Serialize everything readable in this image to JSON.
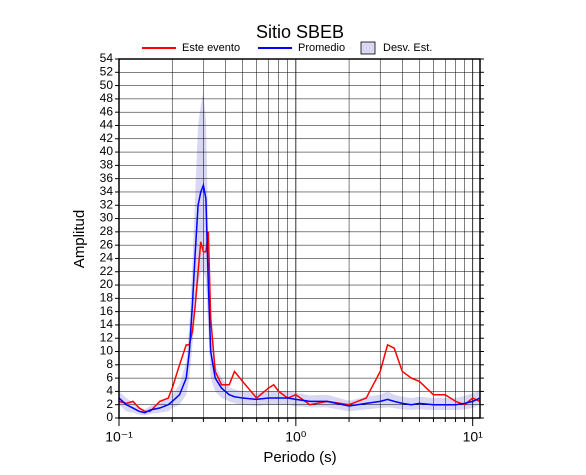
{
  "chart_data": {
    "type": "line",
    "title": "Sitio SBEB",
    "x_label": "Periodo (s)",
    "y_label": "Amplitud",
    "log_x": true,
    "grid": true,
    "xlim": [
      0.1,
      11
    ],
    "ylim": [
      0,
      54
    ],
    "xticks": [
      {
        "value": 0.1,
        "label": "10⁻¹"
      },
      {
        "value": 1,
        "label": "10⁰"
      },
      {
        "value": 10,
        "label": "10¹"
      }
    ],
    "xminorticks": [
      0.2,
      0.3,
      0.4,
      0.5,
      0.6,
      0.7,
      0.8,
      0.9,
      2,
      3,
      4,
      5,
      6,
      7,
      8,
      9
    ],
    "yticks": [
      0,
      2,
      4,
      6,
      8,
      10,
      12,
      14,
      16,
      18,
      20,
      22,
      24,
      26,
      28,
      30,
      32,
      34,
      36,
      38,
      40,
      42,
      44,
      46,
      48,
      50,
      52,
      54
    ],
    "x": [
      0.1,
      0.11,
      0.12,
      0.13,
      0.14,
      0.15,
      0.17,
      0.19,
      0.2,
      0.22,
      0.24,
      0.25,
      0.26,
      0.27,
      0.28,
      0.29,
      0.3,
      0.31,
      0.32,
      0.33,
      0.35,
      0.38,
      0.42,
      0.45,
      0.5,
      0.6,
      0.7,
      0.75,
      0.8,
      0.9,
      1.0,
      1.2,
      1.5,
      2,
      2.5,
      3,
      3.3,
      3.6,
      4,
      4.5,
      5,
      6,
      7,
      8,
      9,
      10,
      11
    ],
    "band": {
      "name": "Desv. Est.",
      "color": "#d8d8f4",
      "lower": [
        2,
        1,
        0.8,
        0.5,
        0.4,
        0.6,
        0.8,
        1,
        1.5,
        2,
        3.5,
        6,
        11,
        16,
        20,
        22,
        22,
        21,
        13,
        6,
        4,
        3,
        2.5,
        2.2,
        2,
        1.8,
        2,
        2,
        2,
        2,
        1.8,
        1.6,
        1.6,
        1,
        1.3,
        1.5,
        1.6,
        1.5,
        1.3,
        1.2,
        1.3,
        1.2,
        1.2,
        1.2,
        1.3,
        1.5,
        2
      ],
      "upper": [
        4,
        3,
        2.3,
        1.6,
        1.3,
        1.8,
        2.3,
        3,
        3.6,
        5,
        8.5,
        14,
        23,
        34,
        44,
        47,
        49,
        45,
        28,
        14,
        8,
        6,
        4.6,
        4.3,
        4,
        3.8,
        4,
        4,
        4,
        4,
        3.8,
        3.4,
        3.5,
        2.6,
        3.2,
        3.5,
        4,
        3.5,
        3.2,
        3,
        3.2,
        3,
        3,
        3,
        3.3,
        3.7,
        4.2
      ]
    },
    "series": [
      {
        "name": "Este evento",
        "color": "#ff0000",
        "values": [
          2.5,
          2.2,
          2.5,
          1.5,
          1,
          1,
          2.5,
          3,
          4.5,
          8,
          11,
          11,
          13,
          17,
          22,
          26.5,
          25,
          25,
          28,
          15,
          7,
          5,
          5,
          7,
          5.5,
          3,
          4.5,
          5,
          4,
          3,
          3.5,
          2,
          2.5,
          2,
          3,
          7,
          11,
          10.5,
          7,
          6,
          5.5,
          3.5,
          3.5,
          2.5,
          2,
          3,
          2.5
        ]
      },
      {
        "name": "Promedio",
        "color": "#0000ff",
        "values": [
          3,
          2,
          1.5,
          1,
          0.8,
          1.2,
          1.5,
          2,
          2.5,
          3.5,
          6,
          10,
          17,
          25,
          32,
          34,
          35,
          33,
          20,
          10,
          6,
          4.5,
          3.5,
          3.2,
          3,
          2.8,
          3,
          3,
          3,
          3,
          2.8,
          2.5,
          2.5,
          1.8,
          2.2,
          2.5,
          2.8,
          2.5,
          2.2,
          2,
          2.2,
          2,
          2,
          2,
          2.2,
          2.5,
          3
        ]
      }
    ]
  }
}
